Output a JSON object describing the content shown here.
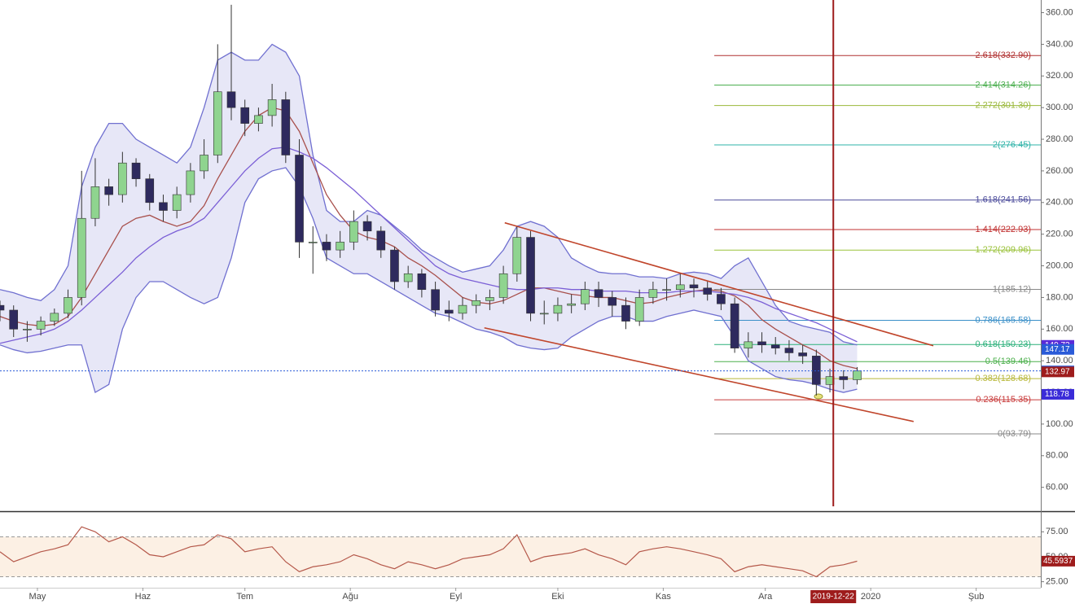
{
  "chart_data": {
    "type": "candlestick",
    "x": [
      0,
      4,
      8,
      12,
      16,
      20,
      24,
      28,
      32,
      36,
      40,
      44,
      48,
      52,
      56,
      60,
      64,
      68,
      72,
      76,
      80,
      84,
      88,
      92,
      96,
      100,
      104,
      108,
      112,
      116,
      120,
      124,
      128,
      132,
      136,
      140,
      144,
      148,
      152,
      156,
      160,
      164,
      168,
      172,
      176,
      180,
      184,
      188,
      192,
      196,
      200,
      204,
      208,
      212,
      216,
      220,
      224,
      228,
      232,
      236,
      240,
      244,
      248,
      252
    ],
    "open": [
      175,
      172,
      160,
      160,
      165,
      170,
      180,
      230,
      250,
      245,
      265,
      255,
      240,
      235,
      245,
      260,
      270,
      310,
      300,
      290,
      295,
      305,
      270,
      215,
      215,
      210,
      215,
      228,
      222,
      210,
      190,
      195,
      185,
      172,
      170,
      175,
      178,
      180,
      195,
      218,
      170,
      170,
      175,
      176,
      185,
      180,
      175,
      165,
      180,
      185,
      185,
      188,
      186,
      182,
      176,
      148,
      152,
      150,
      148,
      145,
      143,
      125,
      130,
      128
    ],
    "high": [
      178,
      175,
      165,
      168,
      173,
      185,
      260,
      268,
      255,
      272,
      268,
      258,
      245,
      250,
      265,
      280,
      340,
      365,
      305,
      300,
      315,
      310,
      280,
      225,
      220,
      222,
      235,
      232,
      225,
      212,
      200,
      198,
      190,
      178,
      180,
      182,
      185,
      200,
      225,
      222,
      178,
      180,
      182,
      190,
      190,
      184,
      180,
      185,
      190,
      192,
      195,
      192,
      190,
      186,
      180,
      158,
      158,
      155,
      153,
      150,
      147,
      135,
      134,
      136
    ],
    "low": [
      165,
      155,
      152,
      156,
      162,
      167,
      175,
      225,
      238,
      240,
      250,
      235,
      228,
      230,
      240,
      255,
      265,
      292,
      282,
      285,
      288,
      265,
      205,
      195,
      203,
      205,
      210,
      216,
      205,
      185,
      186,
      180,
      168,
      165,
      166,
      170,
      172,
      176,
      190,
      165,
      163,
      165,
      170,
      172,
      174,
      168,
      160,
      162,
      176,
      178,
      180,
      180,
      178,
      172,
      145,
      142,
      145,
      144,
      140,
      138,
      118,
      120,
      122,
      125
    ],
    "close": [
      172,
      160,
      160,
      165,
      170,
      180,
      230,
      250,
      245,
      265,
      255,
      240,
      235,
      245,
      260,
      270,
      310,
      300,
      290,
      295,
      305,
      270,
      215,
      215,
      210,
      215,
      228,
      222,
      210,
      190,
      195,
      185,
      172,
      170,
      175,
      178,
      180,
      195,
      218,
      170,
      170,
      175,
      176,
      185,
      180,
      175,
      165,
      180,
      185,
      185,
      188,
      186,
      182,
      176,
      148,
      152,
      150,
      148,
      145,
      143,
      125,
      130,
      128,
      133.57
    ],
    "up_color": "#8fd48f",
    "down_color": "#2e2a5e",
    "xlim": [
      0,
      306
    ],
    "xticks": [
      {
        "value": 11,
        "label": "May"
      },
      {
        "value": 42,
        "label": "Haz"
      },
      {
        "value": 72,
        "label": "Tem"
      },
      {
        "value": 103,
        "label": "Ağu"
      },
      {
        "value": 134,
        "label": "Eyl"
      },
      {
        "value": 164,
        "label": "Eki"
      },
      {
        "value": 195,
        "label": "Kas"
      },
      {
        "value": 225,
        "label": "Ara"
      },
      {
        "value": 256,
        "label": "2020"
      },
      {
        "value": 287,
        "label": "Şub"
      }
    ],
    "ylim": [
      48,
      368
    ],
    "yticks": [
      {
        "value": 60,
        "label": "60.00"
      },
      {
        "value": 80,
        "label": "80.00"
      },
      {
        "value": 100,
        "label": "100.00"
      },
      {
        "value": 120,
        "label": "120.00"
      },
      {
        "value": 140,
        "label": "140.00"
      },
      {
        "value": 160,
        "label": "160.00"
      },
      {
        "value": 180,
        "label": "180.00"
      },
      {
        "value": 200,
        "label": "200.00"
      },
      {
        "value": 220,
        "label": "220.00"
      },
      {
        "value": 240,
        "label": "240.00"
      },
      {
        "value": 260,
        "label": "260.00"
      },
      {
        "value": 280,
        "label": "280.00"
      },
      {
        "value": 300,
        "label": "300.00"
      },
      {
        "value": 320,
        "label": "320.00"
      },
      {
        "value": 340,
        "label": "340.00"
      },
      {
        "value": 360,
        "label": "360.00"
      }
    ],
    "band_fill": "rgba(120,120,210,0.18)",
    "overlays": [
      {
        "color": "#7070d0",
        "values": [
          185,
          183,
          180,
          178,
          185,
          200,
          250,
          275,
          290,
          290,
          280,
          275,
          270,
          265,
          275,
          300,
          330,
          335,
          330,
          330,
          340,
          335,
          320,
          270,
          235,
          228,
          228,
          235,
          232,
          225,
          218,
          210,
          205,
          200,
          196,
          198,
          200,
          210,
          225,
          228,
          225,
          218,
          205,
          200,
          196,
          195,
          195,
          193,
          193,
          192,
          195,
          196,
          195,
          192,
          200,
          205,
          190,
          175,
          165,
          162,
          160,
          158,
          152,
          150
        ]
      },
      {
        "color": "#7070d0",
        "values": [
          150,
          147,
          145,
          146,
          148,
          150,
          150,
          120,
          125,
          160,
          180,
          190,
          190,
          185,
          180,
          176,
          180,
          205,
          240,
          255,
          260,
          262,
          250,
          230,
          205,
          200,
          195,
          195,
          190,
          185,
          180,
          175,
          170,
          168,
          164,
          160,
          158,
          155,
          150,
          148,
          147,
          148,
          155,
          160,
          165,
          168,
          168,
          165,
          165,
          168,
          170,
          172,
          170,
          168,
          155,
          140,
          135,
          130,
          128,
          127,
          125,
          122,
          120,
          122
        ]
      },
      {
        "color": "#a8504c",
        "values": [
          168,
          165,
          163,
          162,
          163,
          168,
          180,
          195,
          210,
          225,
          230,
          232,
          228,
          225,
          228,
          238,
          255,
          270,
          285,
          295,
          300,
          298,
          285,
          265,
          245,
          232,
          222,
          218,
          216,
          212,
          205,
          200,
          194,
          187,
          180,
          177,
          176,
          178,
          182,
          186,
          186,
          184,
          182,
          181,
          180,
          180,
          178,
          176,
          177,
          180,
          182,
          184,
          185,
          184,
          181,
          175,
          166,
          160,
          155,
          150,
          146,
          140,
          137,
          135
        ]
      },
      {
        "color": "#7b5fd6",
        "values": [
          151,
          153,
          155,
          157,
          160,
          165,
          172,
          180,
          188,
          196,
          205,
          212,
          218,
          222,
          225,
          230,
          240,
          250,
          260,
          268,
          274,
          275,
          272,
          268,
          262,
          255,
          248,
          240,
          232,
          224,
          216,
          208,
          200,
          195,
          192,
          190,
          188,
          186,
          185,
          185,
          186,
          186,
          185,
          185,
          184,
          184,
          184,
          183,
          183,
          183,
          184,
          184,
          184,
          183,
          182,
          180,
          177,
          173,
          170,
          167,
          164,
          160,
          156,
          152
        ]
      }
    ],
    "fib_x": 210,
    "fib_levels": [
      {
        "label": "2.618(332.90)",
        "value": 332.9,
        "color": "#b03030"
      },
      {
        "label": "2.414(314.26)",
        "value": 314.26,
        "color": "#4caf50"
      },
      {
        "label": "2.272(301.30)",
        "value": 301.3,
        "color": "#9ab83a"
      },
      {
        "label": "2(276.45)",
        "value": 276.45,
        "color": "#2fb3a8"
      },
      {
        "label": "1.618(241.56)",
        "value": 241.56,
        "color": "#4a4a9a"
      },
      {
        "label": "1.414(222.93)",
        "value": 222.93,
        "color": "#c03030"
      },
      {
        "label": "1.272(209.96)",
        "value": 209.96,
        "color": "#9ac23a"
      },
      {
        "label": "1(185.12)",
        "value": 185.12,
        "color": "#888888"
      },
      {
        "label": "0.786(165.58)",
        "value": 165.58,
        "color": "#3a8fc8"
      },
      {
        "label": "0.618(150.23)",
        "value": 150.23,
        "color": "#2bb07a"
      },
      {
        "label": "0.5(139.46)",
        "value": 139.46,
        "color": "#4cb04c"
      },
      {
        "label": "0.382(128.68)",
        "value": 128.68,
        "color": "#b8b83a"
      },
      {
        "label": "0.236(115.35)",
        "value": 115.35,
        "color": "#c83a3a"
      },
      {
        "label": "0(93.79)",
        "value": 93.79,
        "color": "#888888"
      }
    ],
    "trend_lines": [
      {
        "x": [
          148.4,
          274.4
        ],
        "y": [
          227.2,
          149.5
        ],
        "color": "#c0452b"
      },
      {
        "x": [
          142.4,
          268.6
        ],
        "y": [
          160.8,
          101.6
        ],
        "color": "#c0452b"
      }
    ],
    "vline": {
      "x": 245,
      "label": "2019-12-22",
      "color": "#9e1c1c"
    },
    "price_tags": [
      {
        "value": 149.73,
        "color": "#5a2bd8",
        "line": false
      },
      {
        "value": 147.17,
        "color": "#2a5bd8",
        "line": false
      },
      {
        "value": 133.57,
        "color": "#2a5bd8",
        "line": true
      },
      {
        "value": 132.97,
        "color": "#9e1c1c",
        "line": false
      },
      {
        "value": 118.78,
        "color": "#3a2bd8",
        "line": false
      }
    ],
    "rsi": {
      "values": [
        55,
        45,
        50,
        55,
        58,
        62,
        80,
        75,
        65,
        70,
        62,
        52,
        50,
        55,
        60,
        62,
        72,
        68,
        55,
        58,
        60,
        45,
        35,
        40,
        42,
        45,
        52,
        48,
        42,
        38,
        45,
        42,
        38,
        42,
        48,
        50,
        52,
        58,
        72,
        45,
        50,
        52,
        54,
        58,
        52,
        48,
        42,
        55,
        58,
        60,
        58,
        55,
        52,
        48,
        35,
        40,
        42,
        40,
        38,
        36,
        30,
        40,
        42,
        45.5937
      ],
      "color": "#b5584a",
      "ylim": [
        19,
        94
      ],
      "yticks": [
        {
          "value": 25,
          "label": "25.00"
        },
        {
          "value": 50,
          "label": "50.00"
        },
        {
          "value": 75,
          "label": "75.00"
        }
      ],
      "levels": [
        30,
        70
      ],
      "zone_color": "#fcf0e4",
      "tag": {
        "value": 45.5937,
        "color": "#9e1c1c"
      }
    }
  }
}
